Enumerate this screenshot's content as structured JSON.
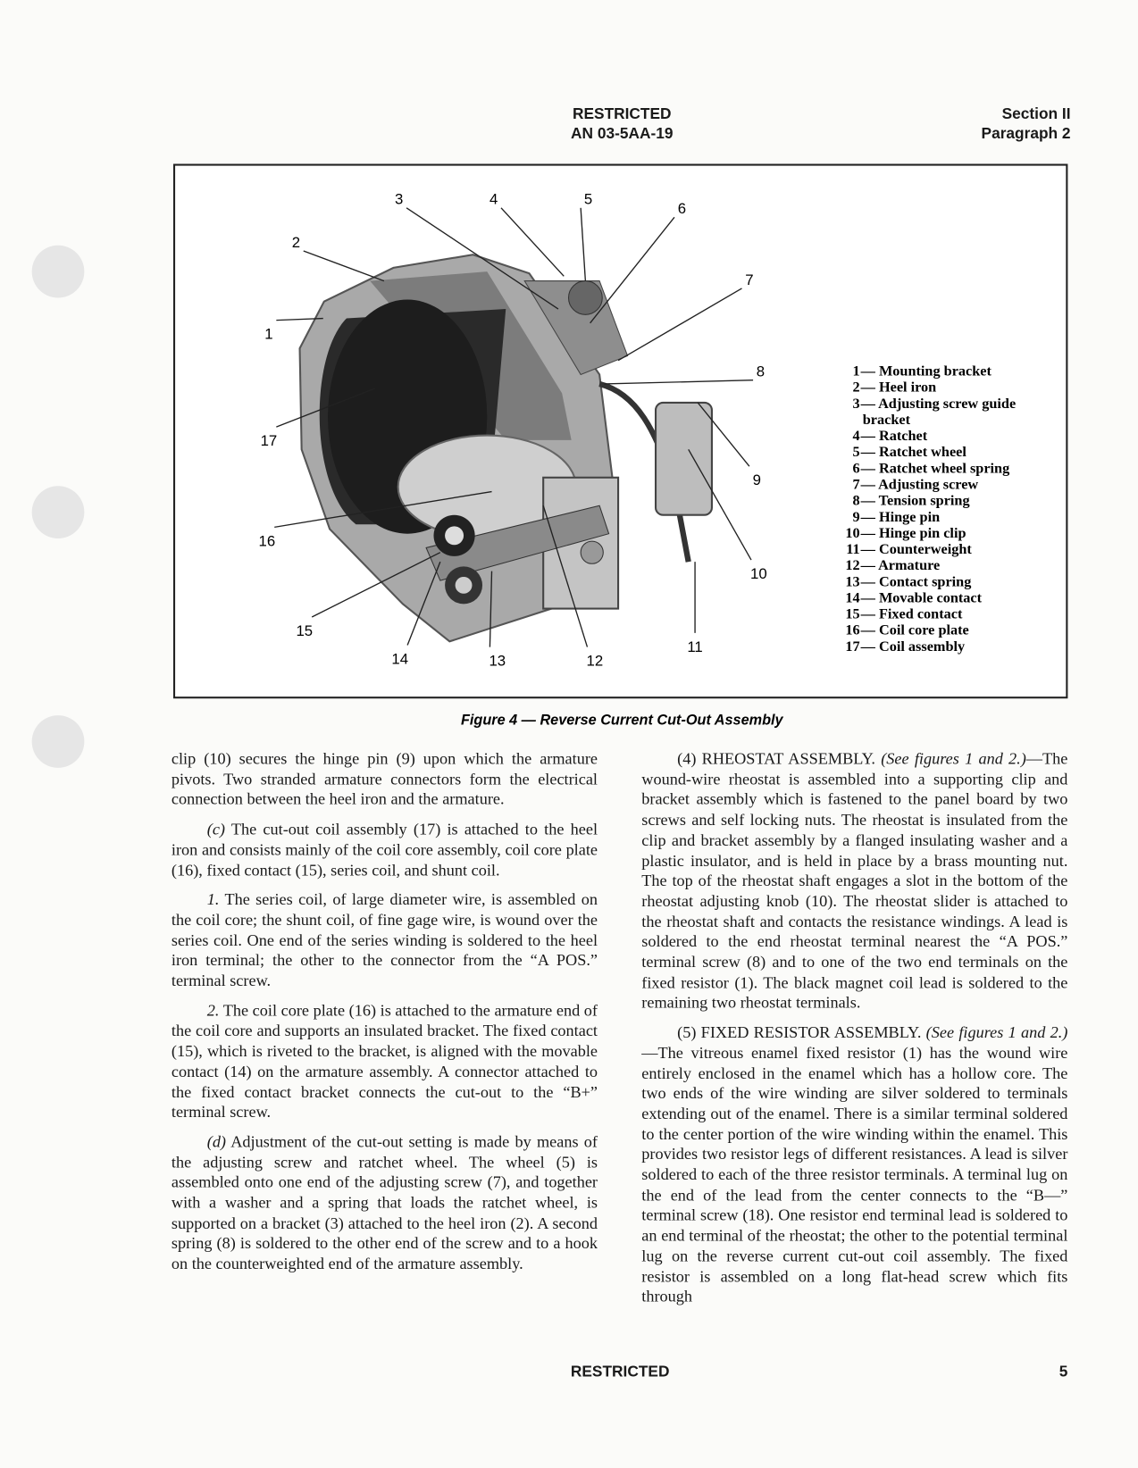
{
  "header": {
    "classification": "RESTRICTED",
    "document_number": "AN 03-5AA-19",
    "section": "Section II",
    "paragraph": "Paragraph 2"
  },
  "figure": {
    "callouts": [
      "1",
      "2",
      "3",
      "4",
      "5",
      "6",
      "7",
      "8",
      "9",
      "10",
      "11",
      "12",
      "13",
      "14",
      "15",
      "16",
      "17"
    ],
    "legend": [
      {
        "number": "1",
        "text": "— Mounting bracket"
      },
      {
        "number": "2",
        "text": "— Heel iron"
      },
      {
        "number": "3",
        "text": "— Adjusting screw guide bracket"
      },
      {
        "number": "4",
        "text": "— Ratchet"
      },
      {
        "number": "5",
        "text": "— Ratchet wheel"
      },
      {
        "number": "6",
        "text": "— Ratchet wheel spring"
      },
      {
        "number": "7",
        "text": "— Adjusting screw"
      },
      {
        "number": "8",
        "text": "— Tension spring"
      },
      {
        "number": "9",
        "text": "— Hinge pin"
      },
      {
        "number": "10",
        "text": "— Hinge pin clip"
      },
      {
        "number": "11",
        "text": "— Counterweight"
      },
      {
        "number": "12",
        "text": "— Armature"
      },
      {
        "number": "13",
        "text": "— Contact spring"
      },
      {
        "number": "14",
        "text": "— Movable contact"
      },
      {
        "number": "15",
        "text": "— Fixed contact"
      },
      {
        "number": "16",
        "text": "— Coil core plate"
      },
      {
        "number": "17",
        "text": "— Coil assembly"
      }
    ],
    "caption": "Figure 4 — Reverse Current Cut-Out Assembly"
  },
  "left_column": [
    {
      "text": "clip (10) secures the hinge pin (9) upon which the armature pivots. Two stranded armature connectors form the electrical connection between the heel iron and the armature."
    },
    {
      "lead": "(c)",
      "text": " The cut-out coil assembly (17) is attached to the heel iron and consists mainly of the coil core assembly, coil core plate (16), fixed contact (15), series coil, and shunt coil."
    },
    {
      "lead": "1.",
      "text": " The series coil, of large diameter wire, is assembled on the coil core; the shunt coil, of fine gage wire, is wound over the series coil. One end of the series winding is soldered to the heel iron terminal; the other to the connector from the “A POS.” terminal screw."
    },
    {
      "lead": "2.",
      "text": " The coil core plate (16) is attached to the armature end of the coil core and supports an insulated bracket. The fixed contact (15), which is riveted to the bracket, is aligned with the movable contact (14) on the armature assembly. A connector attached to the fixed contact bracket connects the cut-out to the “B+” terminal screw."
    },
    {
      "lead": "(d)",
      "text": " Adjustment of the cut-out setting is made by means of the adjusting screw and ratchet wheel. The wheel (5) is assembled onto one end of the adjusting screw (7), and together with a washer and a spring that loads the ratchet wheel, is supported on a bracket (3) attached to the heel iron (2). A second spring (8) is soldered to the other end of the screw and to a hook on the counterweighted end of the armature assembly."
    }
  ],
  "right_column": [
    {
      "lead": "(4) RHEOSTAT ASSEMBLY.",
      "ref": " (See figures 1 and 2.)",
      "text": "—The wound-wire rheostat is assembled into a supporting clip and bracket assembly which is fastened to the panel board by two screws and self locking nuts. The rheostat is insulated from the clip and bracket assembly by a flanged insulating washer and a plastic insulator, and is held in place by a brass mounting nut. The top of the rheostat shaft engages a slot in the bottom of the rheostat adjusting knob (10). The rheostat slider is attached to the rheostat shaft and contacts the resistance windings. A lead is soldered to the end rheostat terminal nearest the “A POS.” terminal screw (8) and to one of the two end terminals on the fixed resistor (1). The black magnet coil lead is soldered to the remaining two rheostat terminals."
    },
    {
      "lead": "(5) FIXED RESISTOR ASSEMBLY.",
      "ref": " (See figures 1 and 2.)",
      "text": "—The vitreous enamel fixed resistor (1) has the wound wire entirely enclosed in the enamel which has a hollow core. The two ends of the wire winding are silver soldered to terminals extending out of the enamel. There is a similar terminal soldered to the center portion of the wire winding within the enamel. This provides two resistor legs of different resistances. A lead is silver soldered to each of the three resistor terminals. A terminal lug on the end of the lead from the center connects to the “B—” terminal screw (18). One resistor end terminal lead is soldered to an end terminal of the rheostat; the other to the potential terminal lug on the reverse current cut-out coil assembly. The fixed resistor is assembled on a long flat-head screw which fits through"
    }
  ],
  "footer": {
    "classification": "RESTRICTED",
    "page_number": "5"
  }
}
